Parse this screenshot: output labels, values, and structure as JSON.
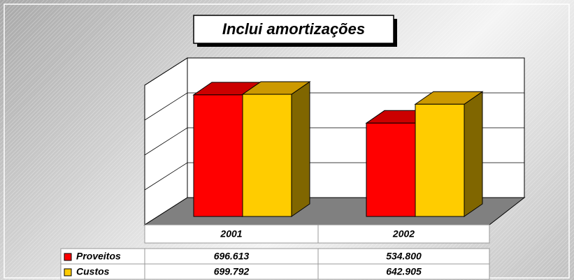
{
  "chart_data": {
    "type": "bar3d",
    "title": "Inclui amortizações",
    "categories": [
      "2001",
      "2002"
    ],
    "series": [
      {
        "name": "Proveitos",
        "color": "#ff0000",
        "values": [
          696613,
          534800
        ],
        "value_labels": [
          "696.613",
          "534.800"
        ]
      },
      {
        "name": "Custos",
        "color": "#ffcc00",
        "values": [
          699792,
          642905
        ],
        "value_labels": [
          "699.792",
          "642.905"
        ]
      }
    ],
    "ylim": [
      0,
      800000
    ],
    "yticks": [
      0,
      200000,
      400000,
      600000,
      800000
    ],
    "grid": true
  }
}
